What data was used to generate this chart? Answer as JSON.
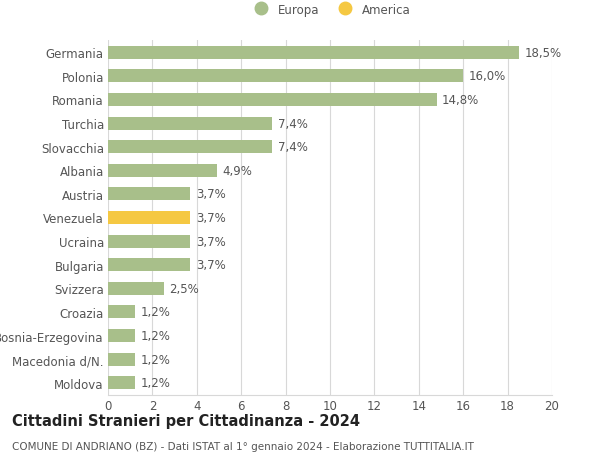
{
  "categories": [
    "Germania",
    "Polonia",
    "Romania",
    "Turchia",
    "Slovacchia",
    "Albania",
    "Austria",
    "Venezuela",
    "Ucraina",
    "Bulgaria",
    "Svizzera",
    "Croazia",
    "Bosnia-Erzegovina",
    "Macedonia d/N.",
    "Moldova"
  ],
  "values": [
    18.5,
    16.0,
    14.8,
    7.4,
    7.4,
    4.9,
    3.7,
    3.7,
    3.7,
    3.7,
    2.5,
    1.2,
    1.2,
    1.2,
    1.2
  ],
  "labels": [
    "18,5%",
    "16,0%",
    "14,8%",
    "7,4%",
    "7,4%",
    "4,9%",
    "3,7%",
    "3,7%",
    "3,7%",
    "3,7%",
    "2,5%",
    "1,2%",
    "1,2%",
    "1,2%",
    "1,2%"
  ],
  "bar_colors": [
    "#a8bf8a",
    "#a8bf8a",
    "#a8bf8a",
    "#a8bf8a",
    "#a8bf8a",
    "#a8bf8a",
    "#a8bf8a",
    "#f5c842",
    "#a8bf8a",
    "#a8bf8a",
    "#a8bf8a",
    "#a8bf8a",
    "#a8bf8a",
    "#a8bf8a",
    "#a8bf8a"
  ],
  "legend_europa_color": "#a8bf8a",
  "legend_america_color": "#f5c842",
  "xlim": [
    0,
    20
  ],
  "xticks": [
    0,
    2,
    4,
    6,
    8,
    10,
    12,
    14,
    16,
    18,
    20
  ],
  "title": "Cittadini Stranieri per Cittadinanza - 2024",
  "subtitle": "COMUNE DI ANDRIANO (BZ) - Dati ISTAT al 1° gennaio 2024 - Elaborazione TUTTITALIA.IT",
  "background_color": "#ffffff",
  "grid_color": "#d8d8d8",
  "bar_height": 0.55,
  "label_fontsize": 8.5,
  "tick_fontsize": 8.5,
  "title_fontsize": 10.5,
  "subtitle_fontsize": 7.5,
  "text_color": "#555555"
}
